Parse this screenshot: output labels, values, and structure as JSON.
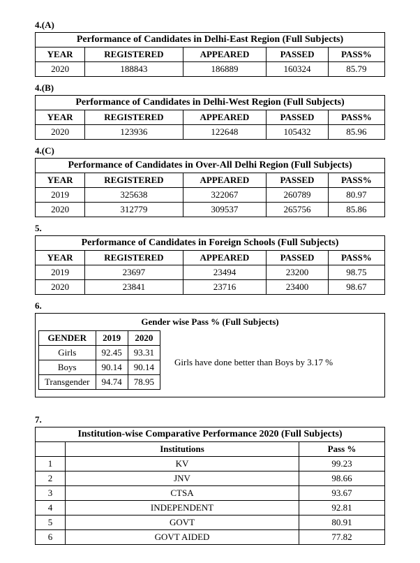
{
  "sections": {
    "s4a": {
      "label": "4.(A)",
      "title": "Performance of Candidates in Delhi-East Region (Full Subjects)",
      "headers": [
        "YEAR",
        "REGISTERED",
        "APPEARED",
        "PASSED",
        "PASS%"
      ],
      "rows": [
        [
          "2020",
          "188843",
          "186889",
          "160324",
          "85.79"
        ]
      ]
    },
    "s4b": {
      "label": "4.(B)",
      "title": "Performance of Candidates in Delhi-West Region (Full Subjects)",
      "headers": [
        "YEAR",
        "REGISTERED",
        "APPEARED",
        "PASSED",
        "PASS%"
      ],
      "rows": [
        [
          "2020",
          "123936",
          "122648",
          "105432",
          "85.96"
        ]
      ]
    },
    "s4c": {
      "label": "4.(C)",
      "title": "Performance of Candidates in Over-All Delhi Region (Full Subjects)",
      "headers": [
        "YEAR",
        "REGISTERED",
        "APPEARED",
        "PASSED",
        "PASS%"
      ],
      "rows": [
        [
          "2019",
          "325638",
          "322067",
          "260789",
          "80.97"
        ],
        [
          "2020",
          "312779",
          "309537",
          "265756",
          "85.86"
        ]
      ]
    },
    "s5": {
      "label": "5.",
      "title": "Performance of Candidates in Foreign Schools (Full Subjects)",
      "headers": [
        "YEAR",
        "REGISTERED",
        "APPEARED",
        "PASSED",
        "PASS%"
      ],
      "rows": [
        [
          "2019",
          "23697",
          "23494",
          "23200",
          "98.75"
        ],
        [
          "2020",
          "23841",
          "23716",
          "23400",
          "98.67"
        ]
      ]
    },
    "s6": {
      "label": "6.",
      "title": "Gender wise Pass % (Full Subjects)",
      "headers": [
        "GENDER",
        "2019",
        "2020"
      ],
      "rows": [
        [
          "Girls",
          "92.45",
          "93.31"
        ],
        [
          "Boys",
          "90.14",
          "90.14"
        ],
        [
          "Transgender",
          "94.74",
          "78.95"
        ]
      ],
      "note": "Girls have done better than Boys by 3.17 %"
    },
    "s7": {
      "label": "7.",
      "title": "Institution-wise Comparative Performance 2020 (Full Subjects)",
      "headers": [
        "",
        "Institutions",
        "Pass %"
      ],
      "rows": [
        [
          "1",
          "KV",
          "99.23"
        ],
        [
          "2",
          "JNV",
          "98.66"
        ],
        [
          "3",
          "CTSA",
          "93.67"
        ],
        [
          "4",
          "INDEPENDENT",
          "92.81"
        ],
        [
          "5",
          "GOVT",
          "80.91"
        ],
        [
          "6",
          "GOVT AIDED",
          "77.82"
        ]
      ]
    }
  },
  "style": {
    "font_family": "Times New Roman",
    "base_font_size_pt": 10,
    "title_font_size_pt": 11,
    "border_color": "#000000",
    "background_color": "#ffffff",
    "text_color": "#000000",
    "col_widths_perf": [
      "60px",
      "120px",
      "120px",
      "90px",
      "70px"
    ]
  }
}
